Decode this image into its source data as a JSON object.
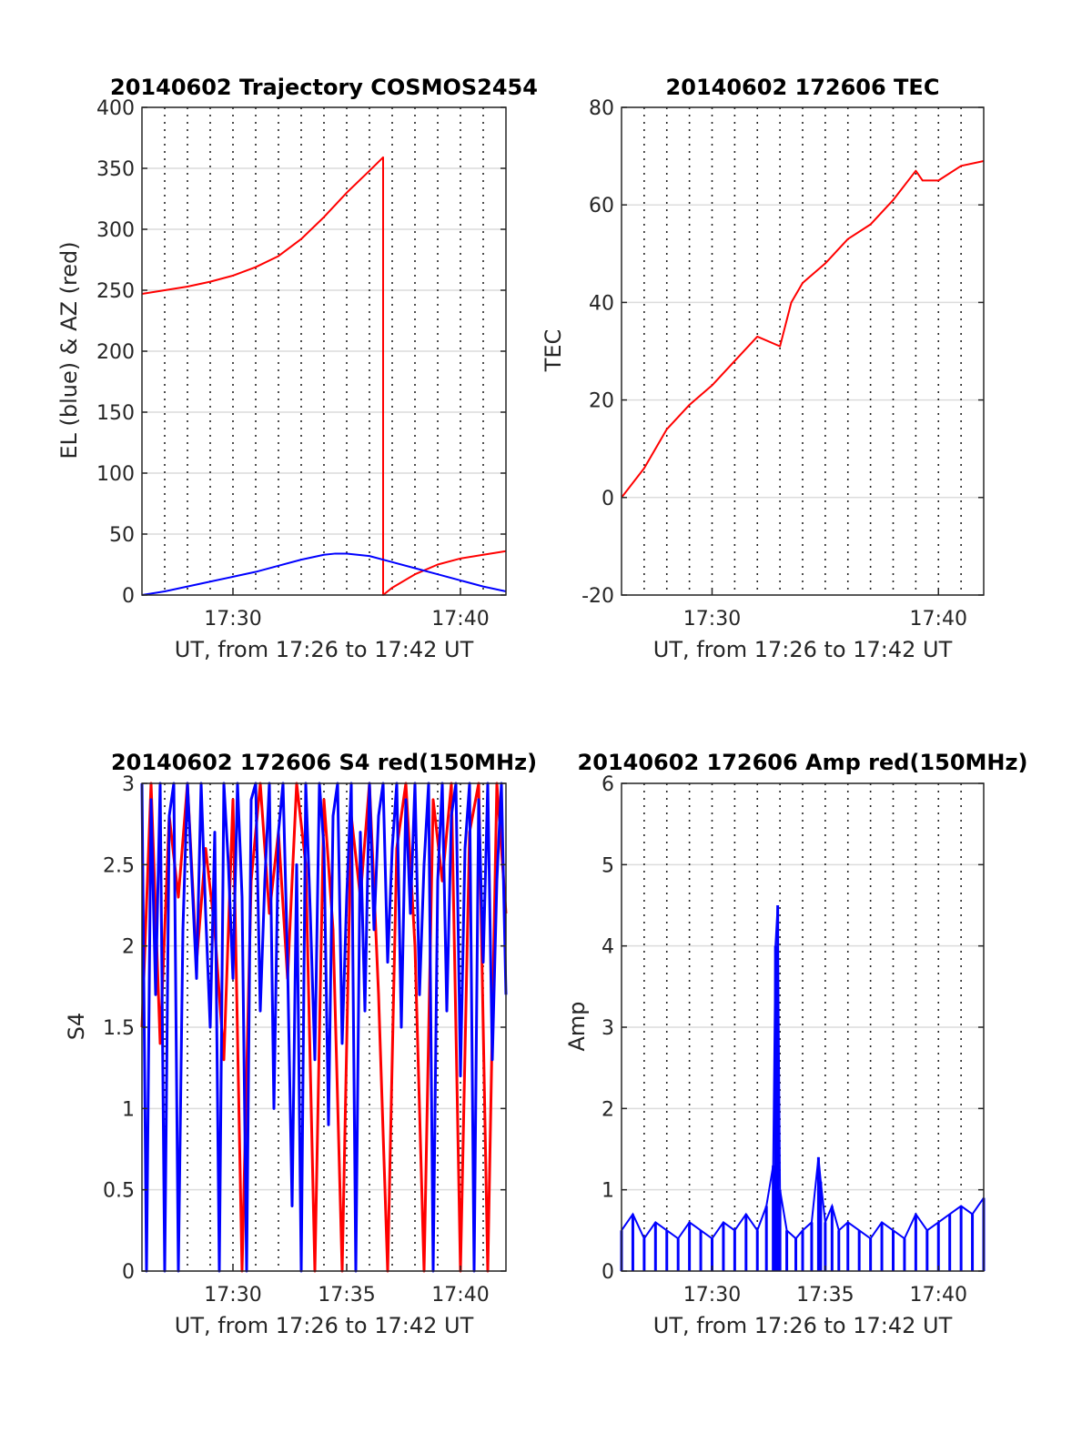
{
  "colors": {
    "red": "#ff0000",
    "blue": "#0000ff",
    "grid": "#dcdcdc",
    "axis": "#262626"
  },
  "chart_data": [
    {
      "type": "line",
      "title": "20140602 Trajectory COSMOS2454",
      "xlabel": "UT, from 17:26 to 17:42 UT",
      "ylabel": "EL (blue) & AZ (red)",
      "xlim": [
        1046,
        1062
      ],
      "ylim": [
        0,
        400
      ],
      "x_tick_values": [
        1050,
        1060
      ],
      "x_tick_labels": [
        "17:30",
        "17:40"
      ],
      "y_ticks": [
        0,
        50,
        100,
        150,
        200,
        250,
        300,
        350,
        400
      ],
      "series": [
        {
          "color": "red",
          "x": [
            1046,
            1047,
            1048,
            1049,
            1050,
            1051,
            1052,
            1053,
            1054,
            1055,
            1056,
            1056.6,
            1056.6,
            1057,
            1058,
            1059,
            1060,
            1061,
            1062
          ],
          "y": [
            247,
            250,
            253,
            257,
            262,
            269,
            278,
            292,
            310,
            330,
            348,
            359,
            0,
            6,
            17,
            25,
            30,
            33,
            36
          ]
        },
        {
          "color": "blue",
          "x": [
            1046,
            1047,
            1048,
            1049,
            1050,
            1051,
            1052,
            1053,
            1054,
            1054.5,
            1055,
            1056,
            1057,
            1058,
            1059,
            1060,
            1061,
            1062
          ],
          "y": [
            0,
            3,
            7,
            11,
            15,
            19,
            24,
            29,
            33,
            34,
            34,
            32,
            27,
            22,
            17,
            12,
            7,
            3
          ]
        }
      ]
    },
    {
      "type": "line",
      "title": "20140602 172606 TEC",
      "xlabel": "UT, from 17:26 to 17:42 UT",
      "ylabel": "TEC",
      "xlim": [
        1046,
        1062
      ],
      "ylim": [
        -20,
        80
      ],
      "x_tick_values": [
        1050,
        1060
      ],
      "x_tick_labels": [
        "17:30",
        "17:40"
      ],
      "y_ticks": [
        -20,
        0,
        20,
        40,
        60,
        80
      ],
      "series": [
        {
          "color": "red",
          "x": [
            1046,
            1047,
            1048,
            1049,
            1050,
            1051,
            1052,
            1053,
            1053.5,
            1054,
            1055,
            1056,
            1057,
            1058,
            1059,
            1059.3,
            1060,
            1061,
            1062
          ],
          "y": [
            0,
            6,
            14,
            19,
            23,
            28,
            33,
            31,
            40,
            44,
            48,
            53,
            56,
            61,
            67,
            65,
            65,
            68,
            69
          ]
        }
      ]
    },
    {
      "type": "line",
      "title": "20140602 172606 S4 red(150MHz)",
      "xlabel": "UT, from 17:26 to 17:42 UT",
      "ylabel": "S4",
      "xlim": [
        1046,
        1062
      ],
      "ylim": [
        0,
        3
      ],
      "x_tick_values": [
        1050,
        1055,
        1060
      ],
      "x_tick_labels": [
        "17:30",
        "17:35",
        "17:40"
      ],
      "y_ticks": [
        0,
        0.5,
        1,
        1.5,
        2,
        2.5,
        3
      ],
      "y_tick_labels": [
        "0",
        "0.5",
        "1",
        "1.5",
        "2",
        "2.5",
        "3"
      ],
      "series": [
        {
          "color": "red",
          "x": [
            1046.0,
            1046.4,
            1046.8,
            1047.2,
            1047.6,
            1048.0,
            1048.4,
            1048.8,
            1049.2,
            1049.6,
            1050.0,
            1050.4,
            1050.8,
            1051.2,
            1051.6,
            1052.0,
            1052.4,
            1052.8,
            1053.2,
            1053.6,
            1054.0,
            1054.4,
            1054.8,
            1055.2,
            1055.6,
            1056.0,
            1056.4,
            1056.8,
            1057.2,
            1057.6,
            1058.0,
            1058.4,
            1058.8,
            1059.2,
            1059.6,
            1060.0,
            1060.4,
            1060.8,
            1061.2,
            1061.6,
            1062.0
          ],
          "y": [
            1.5,
            3.0,
            1.4,
            2.8,
            2.3,
            3.0,
            1.9,
            2.6,
            2.1,
            1.3,
            2.9,
            0.0,
            2.4,
            3.0,
            2.2,
            2.7,
            1.8,
            3.0,
            2.5,
            0.0,
            2.9,
            2.1,
            0.0,
            2.8,
            2.3,
            3.0,
            1.7,
            0.0,
            2.6,
            3.0,
            2.0,
            0.0,
            2.9,
            2.4,
            3.0,
            0.0,
            2.7,
            3.0,
            0.0,
            3.0,
            2.2
          ]
        },
        {
          "color": "blue",
          "x": [
            1046.0,
            1046.2,
            1046.4,
            1046.6,
            1046.8,
            1047.0,
            1047.2,
            1047.4,
            1047.6,
            1047.8,
            1048.0,
            1048.2,
            1048.4,
            1048.6,
            1048.8,
            1049.0,
            1049.2,
            1049.4,
            1049.6,
            1049.8,
            1050.0,
            1050.2,
            1050.4,
            1050.6,
            1050.8,
            1051.0,
            1051.2,
            1051.4,
            1051.6,
            1051.8,
            1052.0,
            1052.2,
            1052.4,
            1052.6,
            1052.8,
            1053.0,
            1053.2,
            1053.4,
            1053.6,
            1053.8,
            1054.0,
            1054.2,
            1054.4,
            1054.6,
            1054.8,
            1055.0,
            1055.2,
            1055.4,
            1055.6,
            1055.8,
            1056.0,
            1056.2,
            1056.4,
            1056.6,
            1056.8,
            1057.0,
            1057.2,
            1057.4,
            1057.6,
            1057.8,
            1058.0,
            1058.2,
            1058.4,
            1058.6,
            1058.8,
            1059.0,
            1059.2,
            1059.4,
            1059.6,
            1059.8,
            1060.0,
            1060.2,
            1060.4,
            1060.6,
            1060.8,
            1061.0,
            1061.2,
            1061.4,
            1061.6,
            1061.8,
            1062.0
          ],
          "y": [
            3.0,
            0.0,
            2.9,
            1.7,
            3.0,
            0.0,
            2.8,
            3.0,
            0.0,
            2.1,
            3.0,
            2.4,
            1.8,
            3.0,
            2.2,
            1.5,
            2.7,
            0.0,
            3.0,
            2.5,
            1.8,
            3.0,
            2.3,
            0.0,
            2.9,
            3.0,
            1.6,
            2.4,
            3.0,
            1.0,
            2.7,
            3.0,
            1.9,
            0.4,
            2.5,
            0.0,
            3.0,
            2.2,
            1.3,
            3.0,
            2.6,
            0.9,
            2.8,
            3.0,
            1.4,
            2.3,
            3.0,
            0.0,
            2.7,
            1.6,
            3.0,
            2.1,
            2.8,
            3.0,
            1.9,
            2.6,
            3.0,
            1.5,
            2.9,
            2.2,
            3.0,
            1.7,
            2.5,
            3.0,
            0.0,
            2.4,
            3.0,
            1.6,
            2.8,
            3.0,
            1.2,
            2.6,
            3.0,
            0.0,
            2.9,
            1.9,
            3.0,
            1.3,
            2.4,
            3.0,
            1.7
          ]
        }
      ]
    },
    {
      "type": "bar",
      "title": "20140602 172606 Amp red(150MHz)",
      "xlabel": "UT, from 17:26 to 17:42 UT",
      "ylabel": "Amp",
      "xlim": [
        1046,
        1062
      ],
      "ylim": [
        0,
        6
      ],
      "x_tick_values": [
        1050,
        1055,
        1060
      ],
      "x_tick_labels": [
        "17:30",
        "17:35",
        "17:40"
      ],
      "y_ticks": [
        0,
        1,
        2,
        3,
        4,
        5,
        6
      ],
      "series": [
        {
          "color": "blue",
          "x": [
            1046.0,
            1046.5,
            1047.0,
            1047.5,
            1048.0,
            1048.5,
            1049.0,
            1049.5,
            1050.0,
            1050.5,
            1051.0,
            1051.5,
            1052.0,
            1052.4,
            1052.7,
            1052.8,
            1052.9,
            1053.0,
            1053.3,
            1053.7,
            1054.0,
            1054.4,
            1054.7,
            1054.8,
            1055.0,
            1055.3,
            1055.6,
            1056.0,
            1056.5,
            1057.0,
            1057.5,
            1058.0,
            1058.5,
            1059.0,
            1059.5,
            1060.0,
            1060.5,
            1061.0,
            1061.5,
            1062.0
          ],
          "y": [
            0.5,
            0.7,
            0.4,
            0.6,
            0.5,
            0.4,
            0.6,
            0.5,
            0.4,
            0.6,
            0.5,
            0.7,
            0.5,
            0.8,
            1.3,
            4.0,
            4.5,
            1.0,
            0.5,
            0.4,
            0.5,
            0.6,
            1.4,
            1.1,
            0.6,
            0.8,
            0.5,
            0.6,
            0.5,
            0.4,
            0.6,
            0.5,
            0.4,
            0.7,
            0.5,
            0.6,
            0.7,
            0.8,
            0.7,
            0.9
          ]
        }
      ]
    }
  ]
}
